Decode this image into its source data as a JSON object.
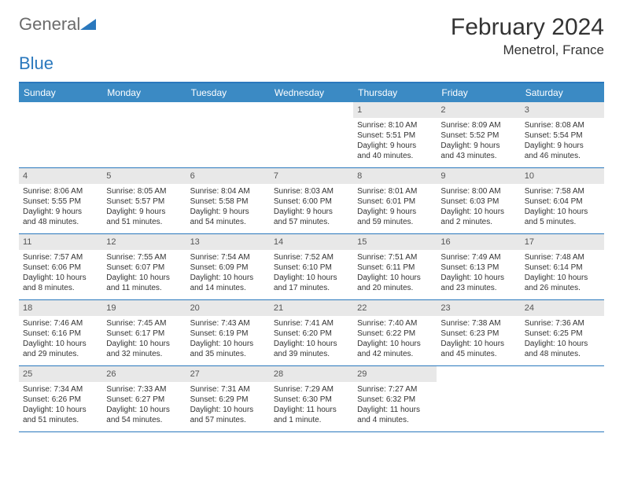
{
  "brand": {
    "part1": "General",
    "part2": "Blue"
  },
  "title": "February 2024",
  "location": "Menetrol, France",
  "colors": {
    "header_bg": "#3b8ac4",
    "accent": "#2a78bd",
    "daynum_bg": "#e8e8e8",
    "text": "#333333"
  },
  "day_headers": [
    "Sunday",
    "Monday",
    "Tuesday",
    "Wednesday",
    "Thursday",
    "Friday",
    "Saturday"
  ],
  "weeks": [
    [
      null,
      null,
      null,
      null,
      {
        "n": "1",
        "sunrise": "8:10 AM",
        "sunset": "5:51 PM",
        "day_h": "9",
        "day_m": "40"
      },
      {
        "n": "2",
        "sunrise": "8:09 AM",
        "sunset": "5:52 PM",
        "day_h": "9",
        "day_m": "43"
      },
      {
        "n": "3",
        "sunrise": "8:08 AM",
        "sunset": "5:54 PM",
        "day_h": "9",
        "day_m": "46"
      }
    ],
    [
      {
        "n": "4",
        "sunrise": "8:06 AM",
        "sunset": "5:55 PM",
        "day_h": "9",
        "day_m": "48"
      },
      {
        "n": "5",
        "sunrise": "8:05 AM",
        "sunset": "5:57 PM",
        "day_h": "9",
        "day_m": "51"
      },
      {
        "n": "6",
        "sunrise": "8:04 AM",
        "sunset": "5:58 PM",
        "day_h": "9",
        "day_m": "54"
      },
      {
        "n": "7",
        "sunrise": "8:03 AM",
        "sunset": "6:00 PM",
        "day_h": "9",
        "day_m": "57"
      },
      {
        "n": "8",
        "sunrise": "8:01 AM",
        "sunset": "6:01 PM",
        "day_h": "9",
        "day_m": "59"
      },
      {
        "n": "9",
        "sunrise": "8:00 AM",
        "sunset": "6:03 PM",
        "day_h": "10",
        "day_m": "2"
      },
      {
        "n": "10",
        "sunrise": "7:58 AM",
        "sunset": "6:04 PM",
        "day_h": "10",
        "day_m": "5"
      }
    ],
    [
      {
        "n": "11",
        "sunrise": "7:57 AM",
        "sunset": "6:06 PM",
        "day_h": "10",
        "day_m": "8"
      },
      {
        "n": "12",
        "sunrise": "7:55 AM",
        "sunset": "6:07 PM",
        "day_h": "10",
        "day_m": "11"
      },
      {
        "n": "13",
        "sunrise": "7:54 AM",
        "sunset": "6:09 PM",
        "day_h": "10",
        "day_m": "14"
      },
      {
        "n": "14",
        "sunrise": "7:52 AM",
        "sunset": "6:10 PM",
        "day_h": "10",
        "day_m": "17"
      },
      {
        "n": "15",
        "sunrise": "7:51 AM",
        "sunset": "6:11 PM",
        "day_h": "10",
        "day_m": "20"
      },
      {
        "n": "16",
        "sunrise": "7:49 AM",
        "sunset": "6:13 PM",
        "day_h": "10",
        "day_m": "23"
      },
      {
        "n": "17",
        "sunrise": "7:48 AM",
        "sunset": "6:14 PM",
        "day_h": "10",
        "day_m": "26"
      }
    ],
    [
      {
        "n": "18",
        "sunrise": "7:46 AM",
        "sunset": "6:16 PM",
        "day_h": "10",
        "day_m": "29"
      },
      {
        "n": "19",
        "sunrise": "7:45 AM",
        "sunset": "6:17 PM",
        "day_h": "10",
        "day_m": "32"
      },
      {
        "n": "20",
        "sunrise": "7:43 AM",
        "sunset": "6:19 PM",
        "day_h": "10",
        "day_m": "35"
      },
      {
        "n": "21",
        "sunrise": "7:41 AM",
        "sunset": "6:20 PM",
        "day_h": "10",
        "day_m": "39"
      },
      {
        "n": "22",
        "sunrise": "7:40 AM",
        "sunset": "6:22 PM",
        "day_h": "10",
        "day_m": "42"
      },
      {
        "n": "23",
        "sunrise": "7:38 AM",
        "sunset": "6:23 PM",
        "day_h": "10",
        "day_m": "45"
      },
      {
        "n": "24",
        "sunrise": "7:36 AM",
        "sunset": "6:25 PM",
        "day_h": "10",
        "day_m": "48"
      }
    ],
    [
      {
        "n": "25",
        "sunrise": "7:34 AM",
        "sunset": "6:26 PM",
        "day_h": "10",
        "day_m": "51"
      },
      {
        "n": "26",
        "sunrise": "7:33 AM",
        "sunset": "6:27 PM",
        "day_h": "10",
        "day_m": "54"
      },
      {
        "n": "27",
        "sunrise": "7:31 AM",
        "sunset": "6:29 PM",
        "day_h": "10",
        "day_m": "57"
      },
      {
        "n": "28",
        "sunrise": "7:29 AM",
        "sunset": "6:30 PM",
        "day_h": "11",
        "day_m": "1",
        "singular": true
      },
      {
        "n": "29",
        "sunrise": "7:27 AM",
        "sunset": "6:32 PM",
        "day_h": "11",
        "day_m": "4"
      },
      null,
      null
    ]
  ]
}
